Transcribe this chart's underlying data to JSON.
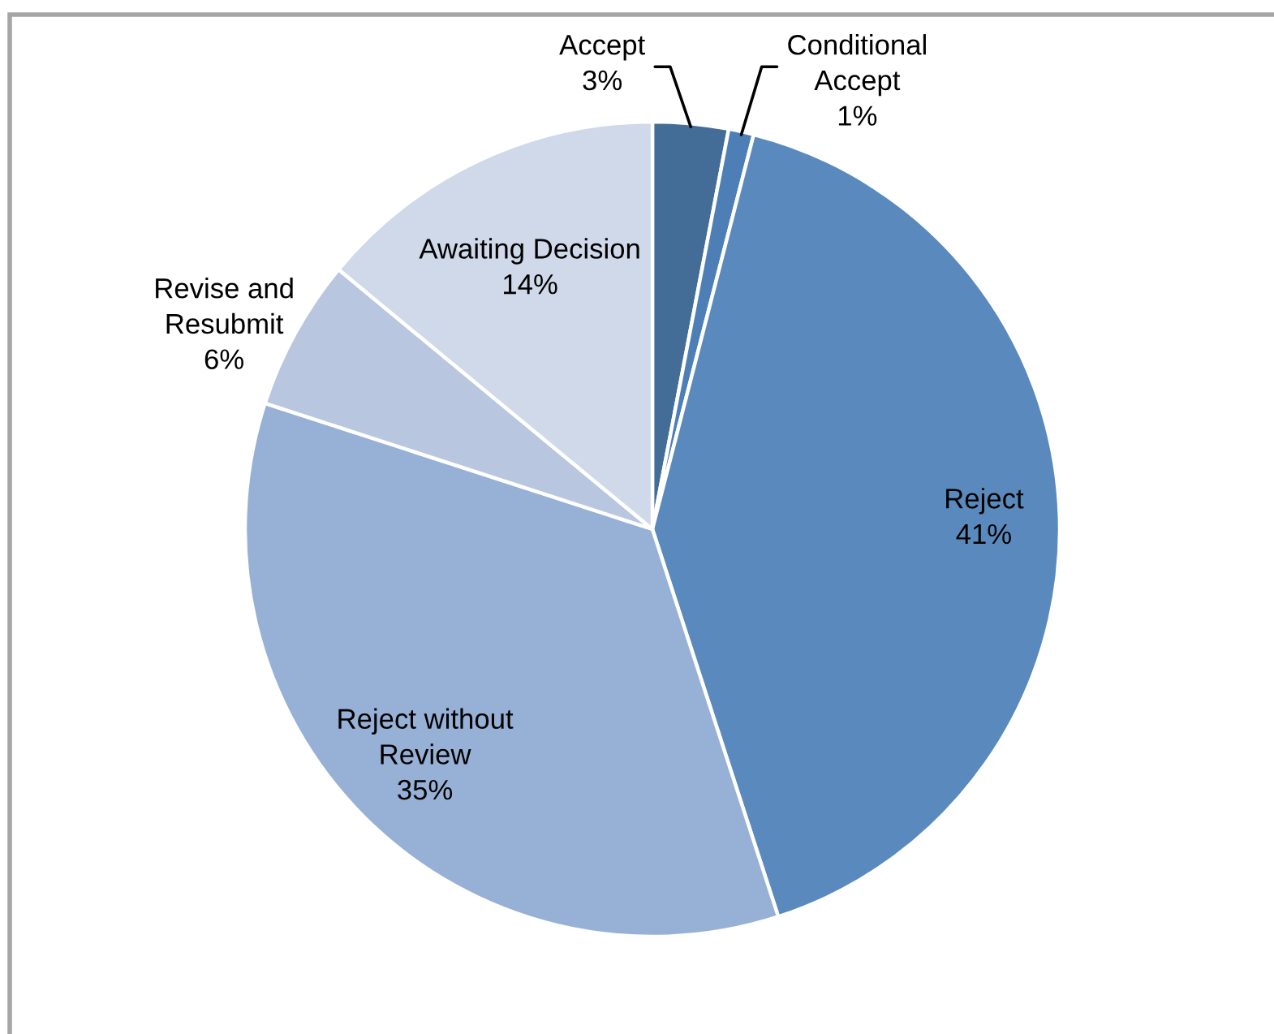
{
  "chart_data": {
    "type": "pie",
    "categories": [
      "Accept",
      "Conditional\nAccept",
      "Reject",
      "Reject without\nReview",
      "Revise and\nResubmit",
      "Awaiting Decision"
    ],
    "values": [
      3,
      1,
      41,
      35,
      6,
      14
    ],
    "colors": [
      "#436d97",
      "#4d7fb6",
      "#5a8abd",
      "#97b1d6",
      "#b8c6df",
      "#d0d9e9"
    ],
    "value_labels": [
      "3%",
      "1%",
      "41%",
      "35%",
      "6%",
      "14%"
    ]
  }
}
